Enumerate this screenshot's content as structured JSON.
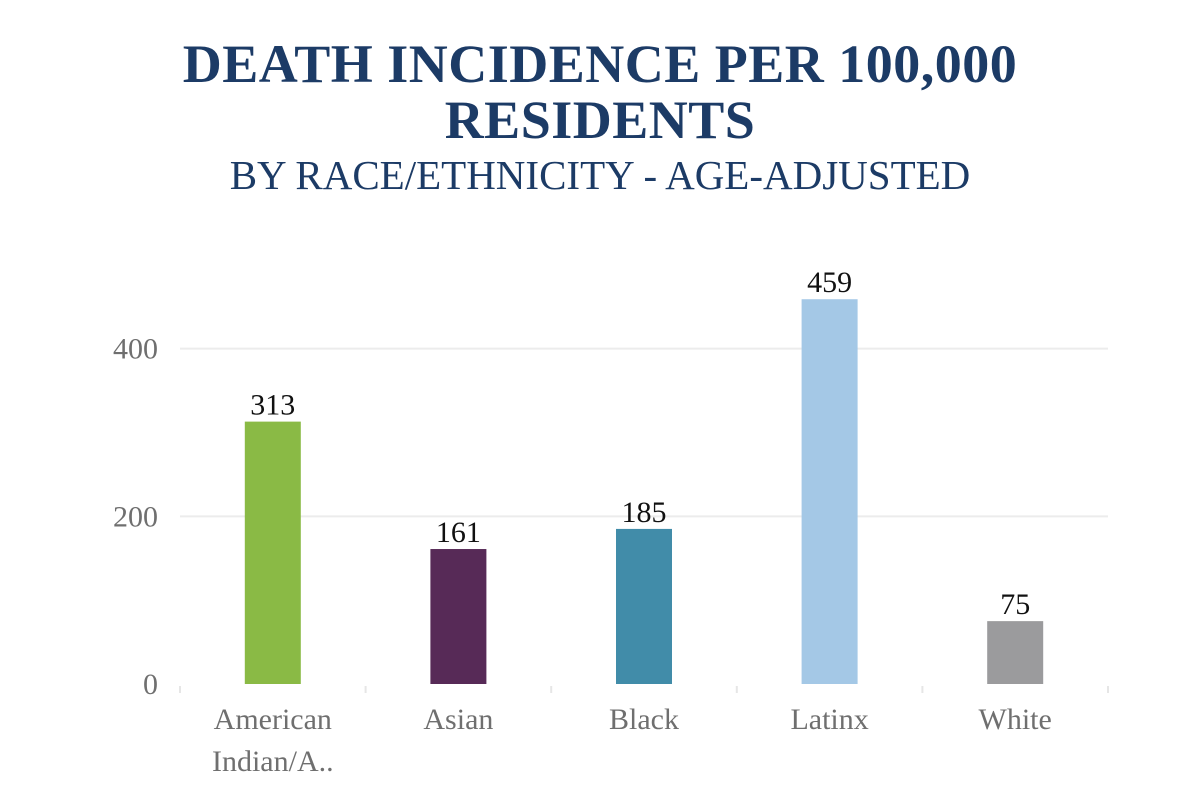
{
  "chart_data": {
    "type": "bar",
    "title_lines": [
      "DEATH INCIDENCE PER 100,000",
      "RESIDENTS"
    ],
    "subtitle": "BY RACE/ETHNICITY - AGE-ADJUSTED",
    "categories": [
      [
        "American",
        "Indian/A.."
      ],
      [
        "Asian"
      ],
      [
        "Black"
      ],
      [
        "Latinx"
      ],
      [
        "White"
      ]
    ],
    "values": [
      313,
      161,
      185,
      459,
      75
    ],
    "colors": [
      "#8aba45",
      "#572a57",
      "#418ca9",
      "#a4c8e6",
      "#9b9b9d"
    ],
    "y_ticks": [
      0,
      200,
      400
    ],
    "ylim": [
      0,
      470
    ],
    "grid": true,
    "legend": "none"
  }
}
